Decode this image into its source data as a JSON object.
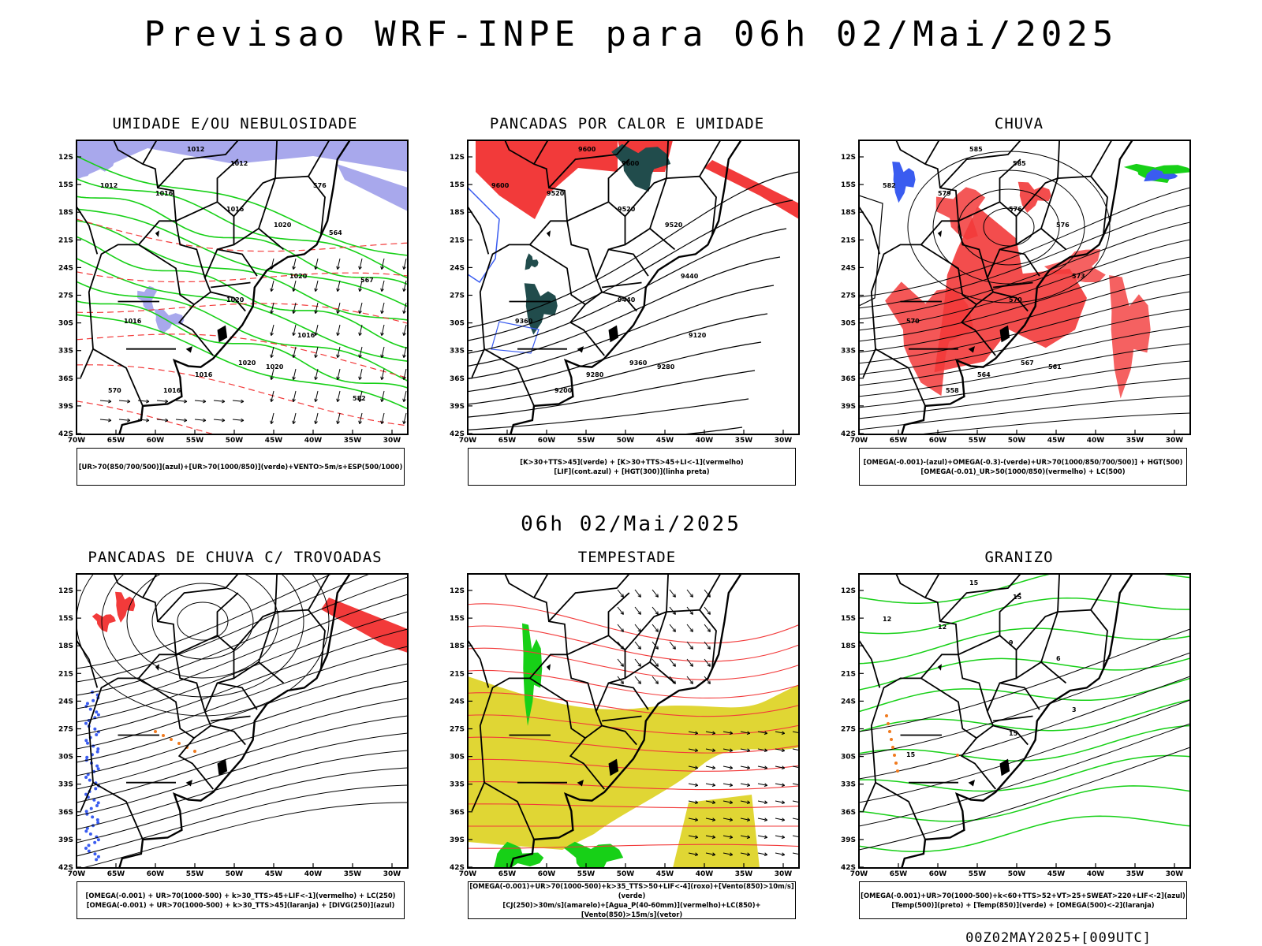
{
  "title": "Previsao WRF-INPE  para 06h 02/Mai/2025",
  "mid_date": "06h 02/Mai/2025",
  "footer": "00Z02MAY2025+[009UTC]",
  "axes": {
    "lat_ticks": [
      "12S",
      "15S",
      "18S",
      "21S",
      "24S",
      "27S",
      "30S",
      "33S",
      "36S",
      "39S",
      "42S"
    ],
    "lon_ticks": [
      "70W",
      "65W",
      "60W",
      "55W",
      "50W",
      "45W",
      "40W",
      "35W",
      "30W"
    ]
  },
  "colors": {
    "blue": "#3a5cf0",
    "green": "#17d017",
    "red": "#f23a3a",
    "darkteal": "#214c4c",
    "yellow": "#e0d634",
    "orange": "#f07a1e",
    "lavender": "#a8a8ec"
  },
  "panels": [
    {
      "title": "UMIDADE E/OU NEBULOSIDADE",
      "legend": [
        "[UR>70(850/700/500)](azul)+[UR>70(1000/850)](verde)+VENTO>5m/s+ESP(500/1000)"
      ],
      "contour_labels": [
        "1012",
        "1012",
        "1012",
        "1016",
        "1016",
        "1020",
        "1020",
        "1020",
        "1016",
        "1020",
        "1016",
        "1020",
        "1016",
        "1016",
        "564",
        "567",
        "570",
        "576",
        "582"
      ]
    },
    {
      "title": "PANCADAS POR CALOR E UMIDADE",
      "legend": [
        "[K>30+TTS>45](verde) + [K>30+TTS>45+LI<-1](vermelho)",
        "[LIF](cont.azul) + [HGT(300)](linha preta)"
      ],
      "contour_labels": [
        "9600",
        "9600",
        "9600",
        "9520",
        "9520",
        "9520",
        "9440",
        "9440",
        "9360",
        "9360",
        "9280",
        "9280",
        "9200",
        "9120"
      ]
    },
    {
      "title": "CHUVA",
      "legend": [
        "[OMEGA(-0.001)-(azul)+OMEGA(-0.3)-(verde)+UR>70(1000/850/700/500)] + HGT(500)",
        "[OMEGA(-0.01)_UR>50(1000/850)(vermelho) + LC(500)"
      ],
      "contour_labels": [
        "585",
        "585",
        "582",
        "579",
        "576",
        "576",
        "573",
        "570",
        "570",
        "567",
        "564",
        "561",
        "558"
      ]
    },
    {
      "title": "PANCADAS DE CHUVA C/ TROVOADAS",
      "legend": [
        "[OMEGA(-0.001) + UR>70(1000-500) + k>30_TTS>45+LIF<-1](vermelho) + LC(250)",
        "[OMEGA(-0.001) + UR>70(1000-500) + k>30_TTS>45](laranja) + [DIVG(250)](azul)"
      ],
      "contour_labels": []
    },
    {
      "title": "TEMPESTADE",
      "legend": [
        "[OMEGA(-0.001)+UR>70(1000-500)+k>35_TTS>50+LIF<-4](roxo)+[Vento(850)>10m/s](verde)",
        "[CJ(250)>30m/s](amarelo)+[Agua_P(40-60mm)](vermelho)+LC(850)+[Vento(850)>15m/s](vetor)"
      ],
      "contour_labels": []
    },
    {
      "title": "GRANIZO",
      "legend": [
        "[OMEGA(-0.001)+UR>70(1000-500)+k<60+TTS>52+VT>25+SWEAT>220+LIF<-2](azul)",
        "[Temp(500)](preto) + [Temp(850)](verde) + [OMEGA(500)<-2](laranja)"
      ],
      "contour_labels": [
        "15",
        "15",
        "12",
        "12",
        "9",
        "6",
        "3",
        "15",
        "15"
      ]
    }
  ]
}
